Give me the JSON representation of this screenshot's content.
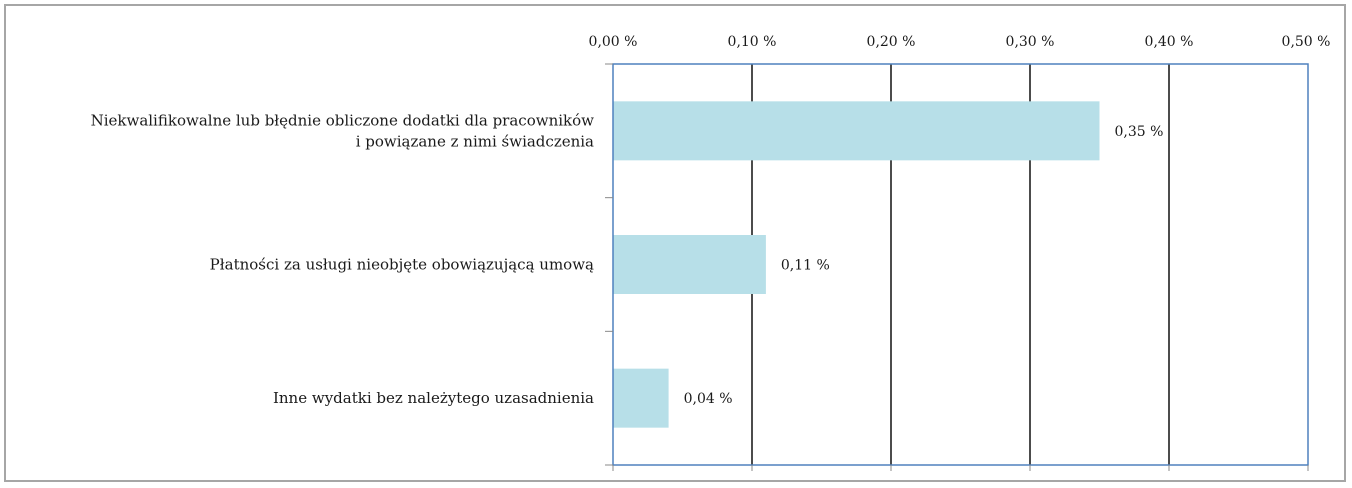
{
  "chart_data": {
    "type": "bar",
    "orientation": "horizontal",
    "categories": [
      "Niekwalifikowalne lub błędnie obliczone dodatki dla pracowników i powiązane z nimi świadczenia",
      "Płatności za usługi nieobjęte obowiązującą umową",
      "Inne wydatki bez należytego uzasadnienia"
    ],
    "category_lines": [
      [
        "Niekwalifikowalne lub błędnie obliczone dodatki dla pracowników",
        "i powiązane z nimi świadczenia"
      ],
      [
        "Płatności za usługi nieobjęte obowiązującą umową"
      ],
      [
        "Inne wydatki bez należytego uzasadnienia"
      ]
    ],
    "values": [
      0.35,
      0.11,
      0.04
    ],
    "data_labels": [
      "0,35 %",
      "0,11 %",
      "0,04 %"
    ],
    "xlim": [
      0,
      0.5
    ],
    "x_ticks": [
      0,
      0.1,
      0.2,
      0.3,
      0.4,
      0.5
    ],
    "x_tick_labels": [
      "0,00 %",
      "0,10 %",
      "0,20 %",
      "0,30 %",
      "0,40 %",
      "0,50 %"
    ],
    "x_axis_position": "top",
    "grid": true,
    "colors": {
      "bar": "#b7dfe8",
      "gridline": "#000000",
      "plot_border": "#4f81bd",
      "frame": "#a6a6a6"
    }
  }
}
